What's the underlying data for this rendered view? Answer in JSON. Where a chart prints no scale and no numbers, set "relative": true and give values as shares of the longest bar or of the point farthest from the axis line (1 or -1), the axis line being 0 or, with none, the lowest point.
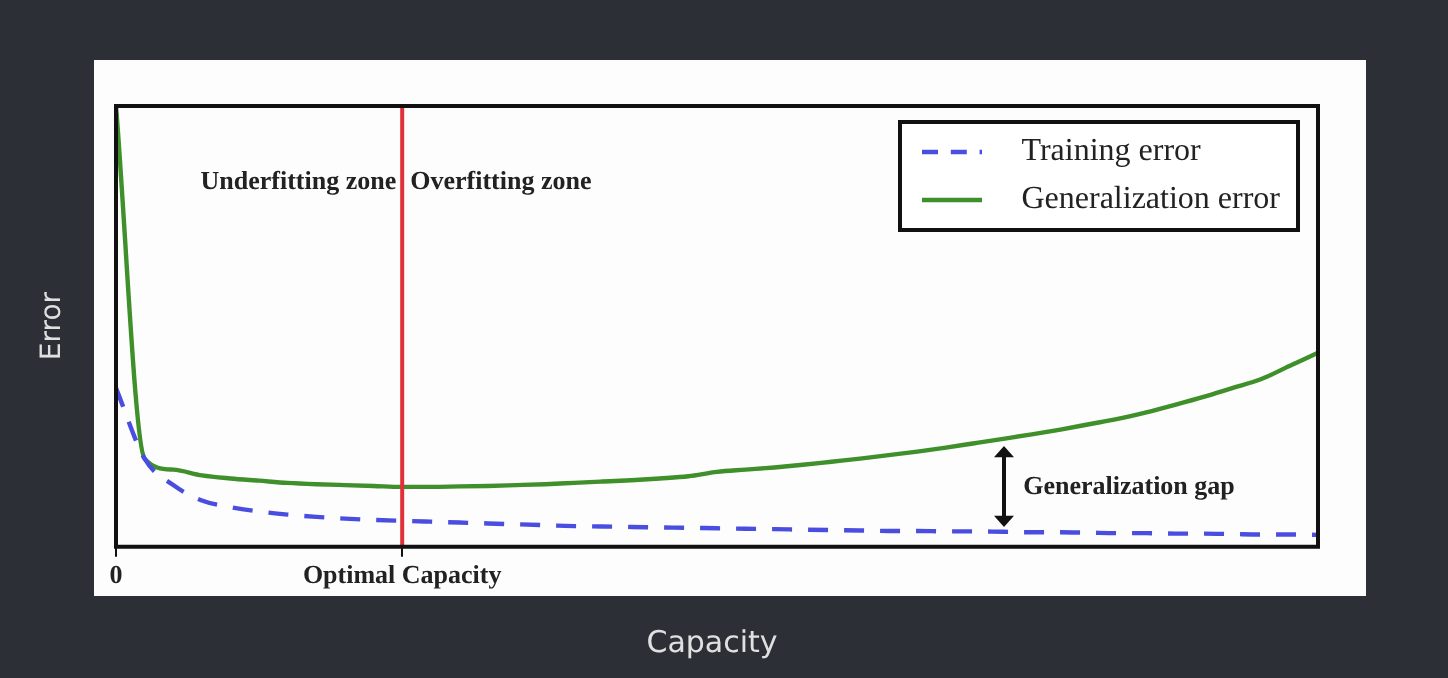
{
  "chart_data": {
    "type": "line",
    "relative": true,
    "xlabel": "Capacity",
    "ylabel": "Error",
    "categories": [
      "0",
      null,
      null,
      null,
      null,
      null,
      null,
      null,
      null,
      null,
      "Optimal Capacity",
      null,
      null,
      null,
      null,
      null,
      null,
      null,
      null,
      null,
      null,
      null,
      null,
      null,
      null,
      null,
      null,
      null,
      null,
      null,
      null,
      null,
      null,
      null,
      null,
      null,
      null,
      null,
      null,
      null,
      null,
      null,
      null
    ],
    "series": [
      {
        "name": "Training error",
        "color": "#4a4ee0",
        "line_style": "dashed",
        "values": [
          0.36,
          0.2,
          0.14,
          0.105,
          0.09,
          0.08,
          0.073,
          0.068,
          0.064,
          0.061,
          0.059,
          0.057,
          0.055,
          0.053,
          0.051,
          0.049,
          0.047,
          0.046,
          0.045,
          0.044,
          0.043,
          0.042,
          0.041,
          0.04,
          0.039,
          0.038,
          0.037,
          0.036,
          0.036,
          0.035,
          0.035,
          0.034,
          0.033,
          0.033,
          0.032,
          0.031,
          0.031,
          0.03,
          0.03,
          0.029,
          0.028,
          0.028,
          0.027
        ]
      },
      {
        "name": "Generalization error",
        "color": "#3f8f2a",
        "line_style": "solid",
        "values": [
          1.0,
          0.2,
          0.175,
          0.162,
          0.155,
          0.15,
          0.145,
          0.142,
          0.14,
          0.138,
          0.136,
          0.136,
          0.137,
          0.138,
          0.14,
          0.142,
          0.145,
          0.148,
          0.151,
          0.155,
          0.16,
          0.17,
          0.175,
          0.18,
          0.186,
          0.193,
          0.2,
          0.208,
          0.216,
          0.225,
          0.235,
          0.245,
          0.255,
          0.266,
          0.278,
          0.29,
          0.305,
          0.322,
          0.34,
          0.36,
          0.38,
          0.41,
          0.44
        ]
      }
    ],
    "ref_lines": [
      {
        "axis": "x",
        "value": "Optimal Capacity",
        "color": "#e0303a"
      }
    ],
    "annotations": [
      "Underfitting zone",
      "Overfitting zone",
      "Generalization gap"
    ],
    "legend": "top right",
    "marker": "none"
  }
}
